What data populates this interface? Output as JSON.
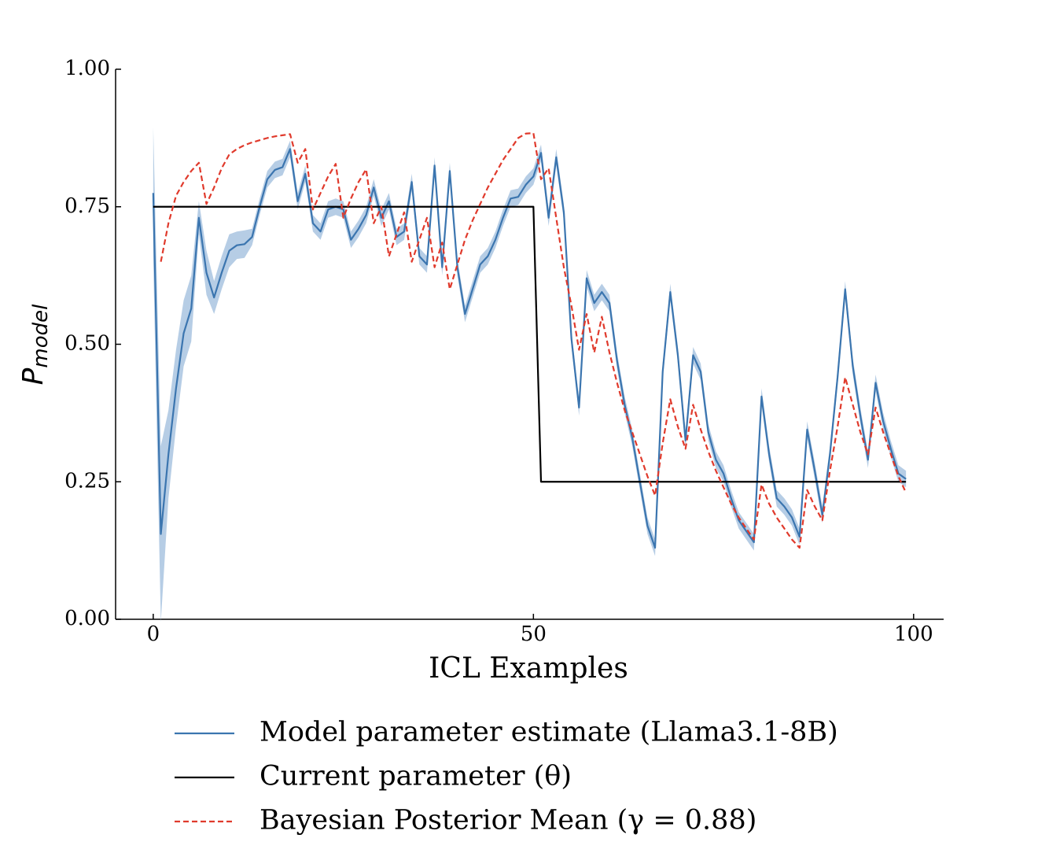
{
  "chart_data": {
    "type": "line",
    "xlabel": "ICL Examples",
    "ylabel": "P",
    "ylabel_subscript": "model",
    "x": [
      0,
      1,
      2,
      3,
      4,
      5,
      6,
      7,
      8,
      9,
      10,
      11,
      12,
      13,
      14,
      15,
      16,
      17,
      18,
      19,
      20,
      21,
      22,
      23,
      24,
      25,
      26,
      27,
      28,
      29,
      30,
      31,
      32,
      33,
      34,
      35,
      36,
      37,
      38,
      39,
      40,
      41,
      42,
      43,
      44,
      45,
      46,
      47,
      48,
      49,
      50,
      51,
      52,
      53,
      54,
      55,
      56,
      57,
      58,
      59,
      60,
      61,
      62,
      63,
      64,
      65,
      66,
      67,
      68,
      69,
      70,
      71,
      72,
      73,
      74,
      75,
      76,
      77,
      78,
      79,
      80,
      81,
      82,
      83,
      84,
      85,
      86,
      87,
      88,
      89,
      90,
      91,
      92,
      93,
      94,
      95,
      96,
      97,
      98,
      99
    ],
    "series": [
      {
        "name": "Model parameter estimate (Llama3.1-8B)",
        "color": "#3b75af",
        "band_color": "#a9c4e0",
        "values": [
          0.775,
          0.155,
          0.3,
          0.42,
          0.52,
          0.565,
          0.73,
          0.63,
          0.585,
          0.63,
          0.67,
          0.68,
          0.682,
          0.695,
          0.75,
          0.8,
          0.817,
          0.822,
          0.855,
          0.76,
          0.81,
          0.72,
          0.705,
          0.745,
          0.75,
          0.745,
          0.69,
          0.71,
          0.735,
          0.785,
          0.73,
          0.76,
          0.695,
          0.705,
          0.795,
          0.66,
          0.645,
          0.825,
          0.64,
          0.815,
          0.64,
          0.555,
          0.6,
          0.645,
          0.66,
          0.69,
          0.73,
          0.765,
          0.768,
          0.79,
          0.805,
          0.848,
          0.73,
          0.84,
          0.74,
          0.51,
          0.385,
          0.62,
          0.575,
          0.595,
          0.575,
          0.47,
          0.39,
          0.33,
          0.25,
          0.17,
          0.13,
          0.45,
          0.595,
          0.48,
          0.325,
          0.48,
          0.45,
          0.34,
          0.29,
          0.265,
          0.22,
          0.18,
          0.16,
          0.14,
          0.405,
          0.3,
          0.22,
          0.205,
          0.185,
          0.15,
          0.345,
          0.27,
          0.19,
          0.3,
          0.44,
          0.6,
          0.46,
          0.37,
          0.29,
          0.43,
          0.36,
          0.31,
          0.265,
          0.255
        ],
        "error": [
          0.12,
          0.16,
          0.08,
          0.07,
          0.06,
          0.06,
          0.03,
          0.04,
          0.03,
          0.03,
          0.03,
          0.025,
          0.025,
          0.015,
          0.015,
          0.015,
          0.015,
          0.015,
          0.015,
          0.015,
          0.015,
          0.015,
          0.015,
          0.015,
          0.015,
          0.015,
          0.015,
          0.015,
          0.015,
          0.015,
          0.015,
          0.015,
          0.015,
          0.015,
          0.015,
          0.015,
          0.015,
          0.015,
          0.015,
          0.015,
          0.015,
          0.015,
          0.015,
          0.015,
          0.015,
          0.015,
          0.015,
          0.015,
          0.015,
          0.015,
          0.015,
          0.015,
          0.015,
          0.015,
          0.015,
          0.015,
          0.015,
          0.015,
          0.015,
          0.015,
          0.015,
          0.015,
          0.015,
          0.015,
          0.015,
          0.015,
          0.015,
          0.015,
          0.015,
          0.015,
          0.015,
          0.015,
          0.015,
          0.015,
          0.015,
          0.015,
          0.015,
          0.015,
          0.015,
          0.015,
          0.015,
          0.015,
          0.015,
          0.015,
          0.015,
          0.015,
          0.015,
          0.015,
          0.015,
          0.015,
          0.015,
          0.015,
          0.015,
          0.015,
          0.015,
          0.015,
          0.015,
          0.015,
          0.015,
          0.015
        ]
      },
      {
        "name": "Current parameter (θ)",
        "color": "#000000",
        "values": [
          0.75,
          0.75,
          0.75,
          0.75,
          0.75,
          0.75,
          0.75,
          0.75,
          0.75,
          0.75,
          0.75,
          0.75,
          0.75,
          0.75,
          0.75,
          0.75,
          0.75,
          0.75,
          0.75,
          0.75,
          0.75,
          0.75,
          0.75,
          0.75,
          0.75,
          0.75,
          0.75,
          0.75,
          0.75,
          0.75,
          0.75,
          0.75,
          0.75,
          0.75,
          0.75,
          0.75,
          0.75,
          0.75,
          0.75,
          0.75,
          0.75,
          0.75,
          0.75,
          0.75,
          0.75,
          0.75,
          0.75,
          0.75,
          0.75,
          0.75,
          0.75,
          0.25,
          0.25,
          0.25,
          0.25,
          0.25,
          0.25,
          0.25,
          0.25,
          0.25,
          0.25,
          0.25,
          0.25,
          0.25,
          0.25,
          0.25,
          0.25,
          0.25,
          0.25,
          0.25,
          0.25,
          0.25,
          0.25,
          0.25,
          0.25,
          0.25,
          0.25,
          0.25,
          0.25,
          0.25,
          0.25,
          0.25,
          0.25,
          0.25,
          0.25,
          0.25,
          0.25,
          0.25,
          0.25,
          0.25,
          0.25,
          0.25,
          0.25,
          0.25,
          0.25,
          0.25,
          0.25,
          0.25,
          0.25,
          0.25
        ]
      },
      {
        "name": "Bayesian Posterior Mean (γ = 0.88)",
        "color": "#e03a2c",
        "dashed": true,
        "values": [
          null,
          0.65,
          0.72,
          0.77,
          0.795,
          0.815,
          0.83,
          0.755,
          0.785,
          0.82,
          0.845,
          0.855,
          0.862,
          0.867,
          0.871,
          0.875,
          0.878,
          0.88,
          0.882,
          0.83,
          0.855,
          0.745,
          0.775,
          0.805,
          0.828,
          0.73,
          0.765,
          0.795,
          0.818,
          0.72,
          0.75,
          0.66,
          0.7,
          0.74,
          0.65,
          0.69,
          0.73,
          0.64,
          0.685,
          0.6,
          0.645,
          0.69,
          0.725,
          0.755,
          0.785,
          0.81,
          0.835,
          0.855,
          0.875,
          0.883,
          0.884,
          0.8,
          0.82,
          0.73,
          0.64,
          0.57,
          0.49,
          0.555,
          0.485,
          0.55,
          0.485,
          0.43,
          0.38,
          0.34,
          0.3,
          0.26,
          0.225,
          0.32,
          0.4,
          0.35,
          0.31,
          0.39,
          0.345,
          0.305,
          0.27,
          0.24,
          0.21,
          0.185,
          0.165,
          0.145,
          0.245,
          0.21,
          0.185,
          0.165,
          0.145,
          0.13,
          0.235,
          0.205,
          0.18,
          0.27,
          0.35,
          0.44,
          0.39,
          0.34,
          0.3,
          0.385,
          0.34,
          0.3,
          0.26,
          0.23
        ]
      }
    ],
    "xlim": [
      -4.95,
      103.95
    ],
    "ylim": [
      0,
      1
    ],
    "xticks": [
      0,
      50,
      100
    ],
    "yticks": [
      {
        "value": 0,
        "label": "0.00"
      },
      {
        "value": 0.25,
        "label": "0.25"
      },
      {
        "value": 0.5,
        "label": "0.50"
      },
      {
        "value": 0.75,
        "label": "0.75"
      },
      {
        "value": 1,
        "label": "1.00"
      }
    ],
    "grid": false,
    "legend": "below"
  }
}
